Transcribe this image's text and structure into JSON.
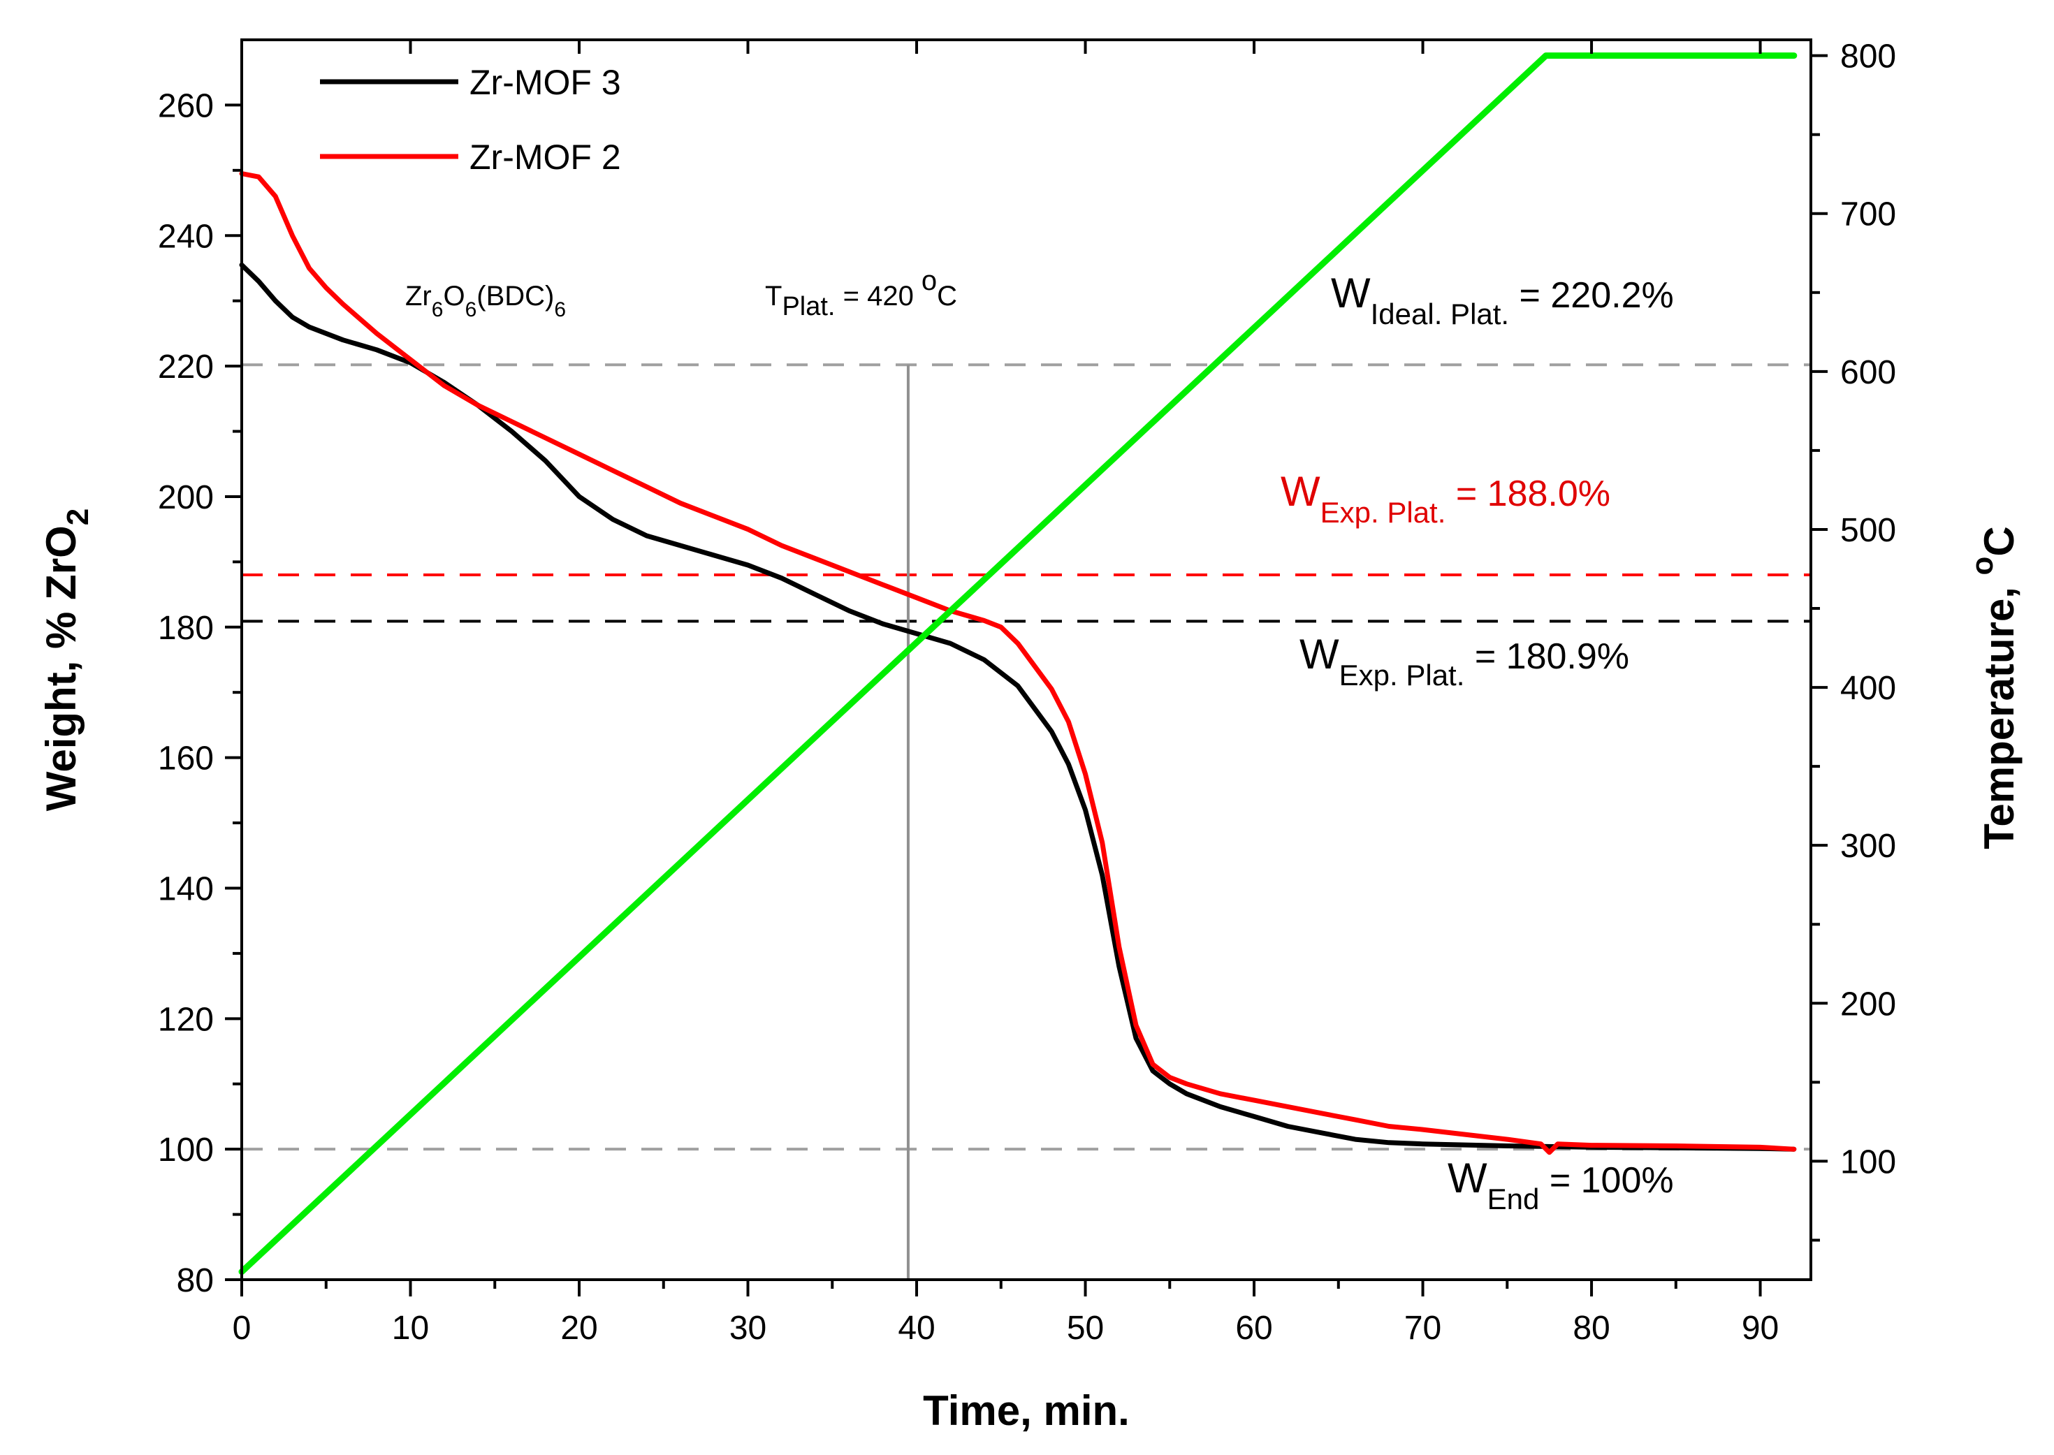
{
  "chart_data": {
    "type": "line",
    "xlabel": "Time, min.",
    "ylabel_left": "Weight, % ZrO2",
    "ylabel_right": "Temperature, oC",
    "xlim": [
      0,
      93
    ],
    "ylim_left": [
      80,
      270
    ],
    "ylim_right": [
      25,
      810
    ],
    "x_ticks": [
      0,
      10,
      20,
      30,
      40,
      50,
      60,
      70,
      80,
      90
    ],
    "y_left_ticks": [
      80,
      100,
      120,
      140,
      160,
      180,
      200,
      220,
      240,
      260
    ],
    "y_right_ticks": [
      100,
      200,
      300,
      400,
      500,
      600,
      700,
      800
    ],
    "legend": {
      "position": "top-left",
      "entries": [
        "Zr-MOF 3",
        "Zr-MOF 2"
      ]
    },
    "series": [
      {
        "name": "Zr-MOF 3",
        "axis": "left",
        "color": "#000000",
        "x": [
          0,
          1,
          2,
          3,
          4,
          6,
          8,
          10,
          12,
          14,
          16,
          18,
          20,
          22,
          24,
          26,
          28,
          30,
          32,
          34,
          36,
          38,
          40,
          42,
          44,
          46,
          48,
          49,
          50,
          51,
          52,
          53,
          54,
          55,
          56,
          58,
          60,
          62,
          64,
          66,
          68,
          70,
          75,
          80,
          85,
          90,
          92
        ],
        "y": [
          235.5,
          233,
          230,
          227.5,
          226,
          224,
          222.5,
          220.5,
          217.5,
          214,
          210,
          205.5,
          200,
          196.5,
          194,
          192.5,
          191,
          189.5,
          187.5,
          185,
          182.5,
          180.5,
          179,
          177.5,
          175,
          171,
          164,
          159,
          152,
          142,
          128,
          117,
          112,
          110,
          108.5,
          106.5,
          105,
          103.5,
          102.5,
          101.5,
          101,
          100.8,
          100.5,
          100.3,
          100.2,
          100.1,
          100
        ]
      },
      {
        "name": "Zr-MOF 2",
        "axis": "left",
        "color": "#ff0000",
        "x": [
          0,
          1,
          2,
          3,
          4,
          5,
          6,
          8,
          10,
          12,
          14,
          16,
          18,
          20,
          22,
          24,
          26,
          28,
          30,
          32,
          34,
          36,
          38,
          40,
          42,
          44,
          45,
          46,
          48,
          49,
          50,
          51,
          52,
          53,
          54,
          55,
          56,
          58,
          60,
          62,
          64,
          66,
          68,
          70,
          75,
          77,
          77.5,
          78,
          80,
          85,
          90,
          92
        ],
        "y": [
          249.5,
          249,
          246,
          240,
          235,
          232,
          229.5,
          225,
          221,
          217,
          214,
          211.5,
          209,
          206.5,
          204,
          201.5,
          199,
          197,
          195,
          192.5,
          190.5,
          188.5,
          186.5,
          184.5,
          182.5,
          181,
          180,
          177.5,
          170.5,
          165.5,
          157.5,
          147,
          131,
          119,
          113,
          111,
          110,
          108.5,
          107.5,
          106.5,
          105.5,
          104.5,
          103.5,
          103,
          101.5,
          100.8,
          99.5,
          100.8,
          100.6,
          100.5,
          100.3,
          100
        ]
      },
      {
        "name": "Temperature",
        "axis": "right",
        "color": "#00ee00",
        "x": [
          0,
          77.3,
          92
        ],
        "y": [
          30,
          800,
          800
        ]
      }
    ],
    "reference_lines": [
      {
        "axis": "left",
        "value": 220.2,
        "color": "#a0a0a0",
        "style": "dashed"
      },
      {
        "axis": "left",
        "value": 188.0,
        "color": "#ff0000",
        "style": "dashed"
      },
      {
        "axis": "left",
        "value": 180.9,
        "color": "#000000",
        "style": "dashed"
      },
      {
        "axis": "left",
        "value": 100,
        "color": "#a0a0a0",
        "style": "dashed"
      }
    ],
    "vertical_line": {
      "x": 39.5,
      "y_top": 220.2,
      "color": "#909090"
    },
    "annotations": {
      "zr_formula": {
        "parts": [
          "Zr",
          "6",
          "O",
          "6",
          "(BDC)",
          "6"
        ]
      },
      "t_plat": {
        "main": "T",
        "sub": "Plat.",
        "value": " = 420 ",
        "sup": "o",
        "unit": "C"
      },
      "w_ideal": {
        "main": "W",
        "sub": "Ideal. Plat.",
        "value": " = 220.2%"
      },
      "w_exp_red": {
        "main": "W",
        "sub": "Exp. Plat.",
        "value": " = 188.0%"
      },
      "w_exp_black": {
        "main": "W",
        "sub": "Exp. Plat.",
        "value": " = 180.9%"
      },
      "w_end": {
        "main": "W",
        "sub": "End",
        "value": " = 100%"
      }
    },
    "y_left_title_parts": {
      "main": "Weight, % ZrO",
      "sub": "2"
    },
    "y_right_title_parts": {
      "main": "Temperature, ",
      "sup": "o",
      "unit": "C"
    }
  }
}
